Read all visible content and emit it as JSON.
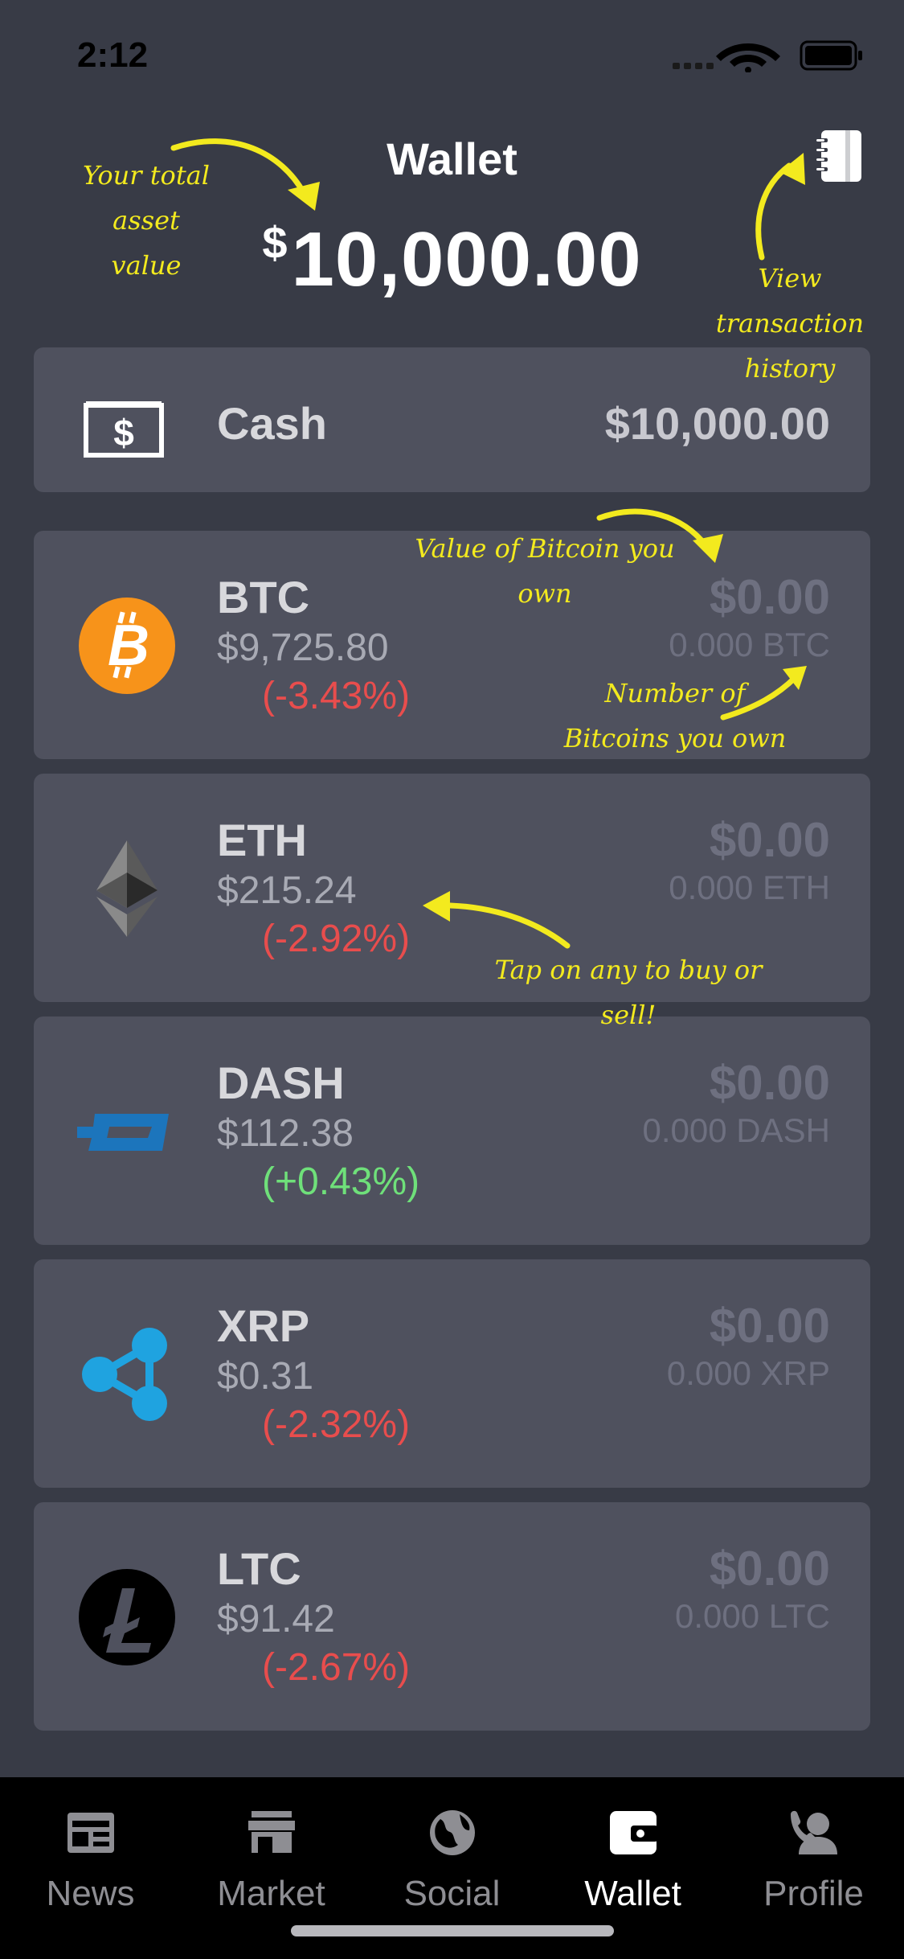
{
  "status_bar": {
    "time": "2:12"
  },
  "header": {
    "title": "Wallet",
    "currency_symbol": "$",
    "total_value": "10,000.00"
  },
  "annotations": {
    "total": [
      "Your total",
      "asset value"
    ],
    "history": [
      "View transaction",
      "history"
    ],
    "btc_value": "Value of Bitcoin you own",
    "btc_amount": [
      "Number of",
      "Bitcoins you own"
    ],
    "tap": "Tap on any to buy or sell!"
  },
  "cash": {
    "label": "Cash",
    "value": "$10,000.00"
  },
  "coins": [
    {
      "symbol": "BTC",
      "price": "$9,725.80",
      "change": "(-3.43%)",
      "direction": "neg",
      "value": "$0.00",
      "amount": "0.000 BTC",
      "icon": "bitcoin-icon"
    },
    {
      "symbol": "ETH",
      "price": "$215.24",
      "change": "(-2.92%)",
      "direction": "neg",
      "value": "$0.00",
      "amount": "0.000 ETH",
      "icon": "ethereum-icon"
    },
    {
      "symbol": "DASH",
      "price": "$112.38",
      "change": "(+0.43%)",
      "direction": "pos",
      "value": "$0.00",
      "amount": "0.000 DASH",
      "icon": "dash-icon"
    },
    {
      "symbol": "XRP",
      "price": "$0.31",
      "change": "(-2.32%)",
      "direction": "neg",
      "value": "$0.00",
      "amount": "0.000 XRP",
      "icon": "ripple-icon"
    },
    {
      "symbol": "LTC",
      "price": "$91.42",
      "change": "(-2.67%)",
      "direction": "neg",
      "value": "$0.00",
      "amount": "0.000 LTC",
      "icon": "litecoin-icon"
    }
  ],
  "tabs": [
    {
      "label": "News",
      "icon": "news-icon"
    },
    {
      "label": "Market",
      "icon": "store-icon"
    },
    {
      "label": "Social",
      "icon": "globe-icon"
    },
    {
      "label": "Wallet",
      "icon": "wallet-icon",
      "active": true
    },
    {
      "label": "Profile",
      "icon": "profile-icon"
    }
  ],
  "colors": {
    "background": "#383b46",
    "card": "#4f515e",
    "annotation": "#f3ea1e",
    "negative": "#e84d4d",
    "positive": "#6fe07a"
  }
}
